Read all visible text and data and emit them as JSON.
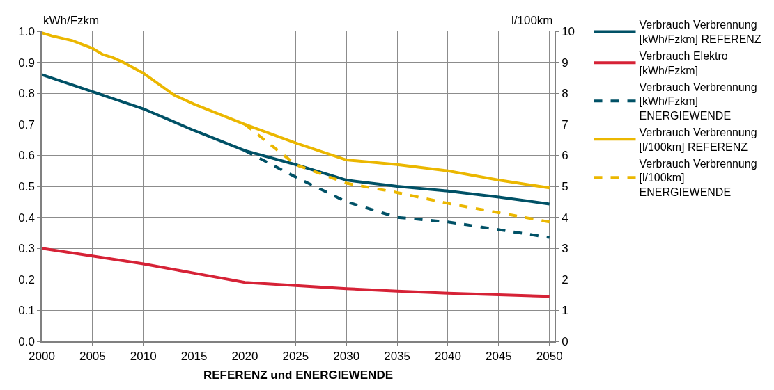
{
  "chart_data": {
    "type": "line",
    "xlabel": "REFERENZ und ENERGIEWENDE",
    "ylabel": "kWh/Fzkm",
    "y2label": "l/100km",
    "xlim": [
      2000,
      2050.5
    ],
    "xticks": [
      2000,
      2005,
      2010,
      2015,
      2020,
      2025,
      2030,
      2035,
      2040,
      2045,
      2050
    ],
    "ylim": [
      0,
      1
    ],
    "yticks": [
      {
        "value": 0,
        "label": "0.0"
      },
      0.1,
      0.2,
      0.3,
      0.4,
      0.5,
      0.6,
      0.7,
      0.8,
      0.9,
      {
        "value": 1,
        "label": "1.0"
      }
    ],
    "y2lim": [
      0,
      10
    ],
    "y2ticks": [
      0,
      1,
      2,
      3,
      4,
      5,
      6,
      7,
      8,
      9,
      10
    ],
    "grid": true,
    "legend": "right",
    "marker": "none",
    "series": [
      {
        "name": "Verbrauch Verbrennung [kWh/Fzkm] REFERENZ",
        "color": "#005166",
        "line_style": "solid",
        "x": [
          2000,
          2005,
          2010,
          2015,
          2020,
          2025,
          2030,
          2035,
          2040,
          2045,
          2050
        ],
        "values": [
          0.86,
          0.805,
          0.75,
          0.68,
          0.615,
          0.57,
          0.52,
          0.5,
          0.485,
          0.465,
          0.443
        ]
      },
      {
        "name": "Verbrauch Elektro [kWh/Fzkm]",
        "color": "#d62236",
        "line_style": "solid",
        "x": [
          2000,
          2005,
          2010,
          2015,
          2020,
          2025,
          2030,
          2035,
          2040,
          2045,
          2050
        ],
        "values": [
          0.3,
          0.275,
          0.25,
          0.22,
          0.19,
          0.18,
          0.17,
          0.162,
          0.155,
          0.15,
          0.145
        ]
      },
      {
        "name": "Verbrauch Verbrennung [kWh/Fzkm] ENERGIEWENDE",
        "color": "#005166",
        "line_style": "dashed",
        "x": [
          2020,
          2025,
          2030,
          2035,
          2040,
          2045,
          2050
        ],
        "values": [
          0.615,
          0.53,
          0.45,
          0.4,
          0.385,
          0.36,
          0.335
        ]
      },
      {
        "name": "Verbrauch Verbrennung [l/100km] REFERENZ",
        "color": "#ebb700",
        "line_style": "solid",
        "axis": "y2",
        "x": [
          2000,
          2001,
          2003,
          2005,
          2006,
          2007,
          2008,
          2010,
          2013,
          2015,
          2020,
          2025,
          2030,
          2035,
          2040,
          2045,
          2050
        ],
        "values": [
          9.95,
          9.85,
          9.7,
          9.45,
          9.25,
          9.15,
          9.0,
          8.65,
          7.95,
          7.65,
          7.0,
          6.4,
          5.85,
          5.7,
          5.5,
          5.2,
          4.95
        ]
      },
      {
        "name": "Verbrauch Verbrennung [l/100km] ENERGIEWENDE",
        "color": "#ebb700",
        "line_style": "dashed",
        "axis": "y2",
        "x": [
          2020,
          2025,
          2030,
          2035,
          2040,
          2045,
          2050
        ],
        "values": [
          7.0,
          5.7,
          5.1,
          4.8,
          4.45,
          4.15,
          3.85
        ]
      }
    ]
  }
}
